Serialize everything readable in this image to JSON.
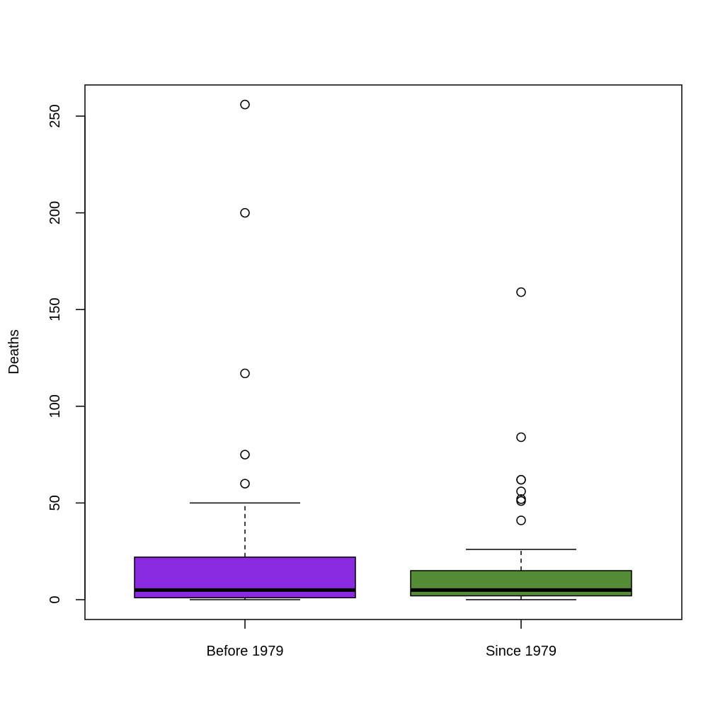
{
  "chart_data": {
    "type": "box",
    "title": "",
    "xlabel": "",
    "ylabel": "Deaths",
    "ylim": [
      -10,
      265
    ],
    "yticks": [
      0,
      50,
      100,
      150,
      200,
      250
    ],
    "grid": false,
    "legend": "none",
    "categories": [
      "Before 1979",
      "Since 1979"
    ],
    "boxes": [
      {
        "category": "Before 1979",
        "color": "#8a2be2",
        "whisker_low": 0,
        "q1": 1,
        "median": 5,
        "q3": 22,
        "whisker_high": 50,
        "outliers": [
          60,
          75,
          117,
          200,
          256
        ]
      },
      {
        "category": "Since 1979",
        "color": "#548b35",
        "whisker_low": 0,
        "q1": 2,
        "median": 5,
        "q3": 15,
        "whisker_high": 26,
        "outliers": [
          41,
          51,
          52,
          56,
          62,
          62,
          84,
          159
        ]
      }
    ]
  }
}
